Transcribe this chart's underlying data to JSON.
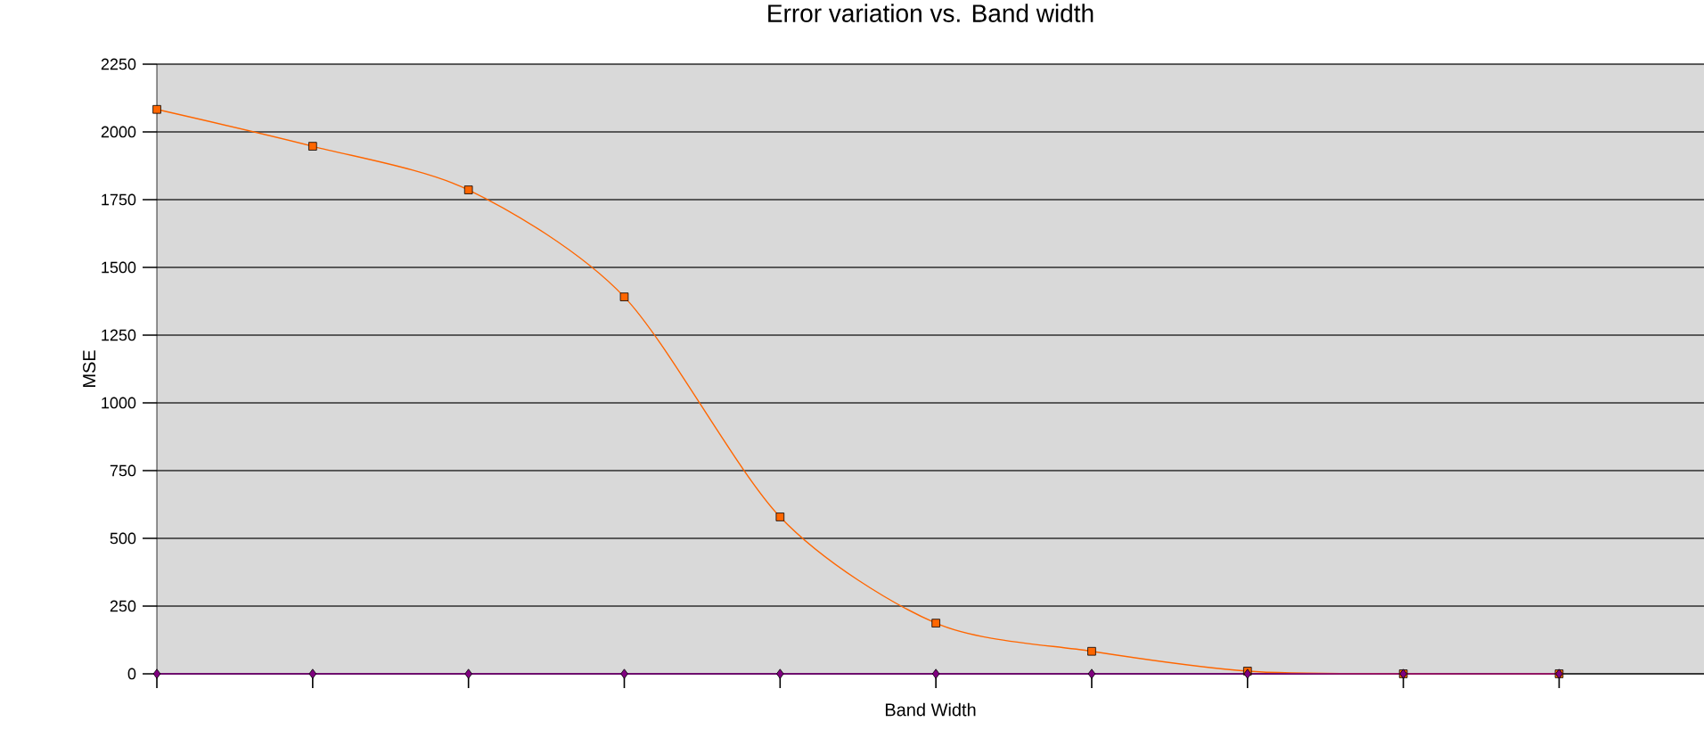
{
  "chart_data": {
    "type": "line",
    "title": "Error variation vs. Band width",
    "xlabel": "Band Width",
    "ylabel": "MSE",
    "categories": [
      null,
      null,
      null,
      null,
      null,
      null,
      null,
      null,
      null,
      null
    ],
    "series": [
      {
        "color": "#ff6600",
        "marker": "square",
        "values": [
          2083,
          1947,
          1786,
          1391,
          579,
          187,
          83,
          10,
          0,
          0
        ]
      },
      {
        "color": "#800080",
        "marker": "diamond",
        "values": [
          0,
          0,
          0,
          0,
          0,
          0,
          0,
          0,
          0,
          0
        ]
      }
    ],
    "ylim": [
      0,
      2250
    ],
    "yticks": [
      0,
      250,
      500,
      750,
      1000,
      1250,
      1500,
      1750,
      2000,
      2250
    ],
    "grid": "y",
    "tick_labels": "y"
  }
}
